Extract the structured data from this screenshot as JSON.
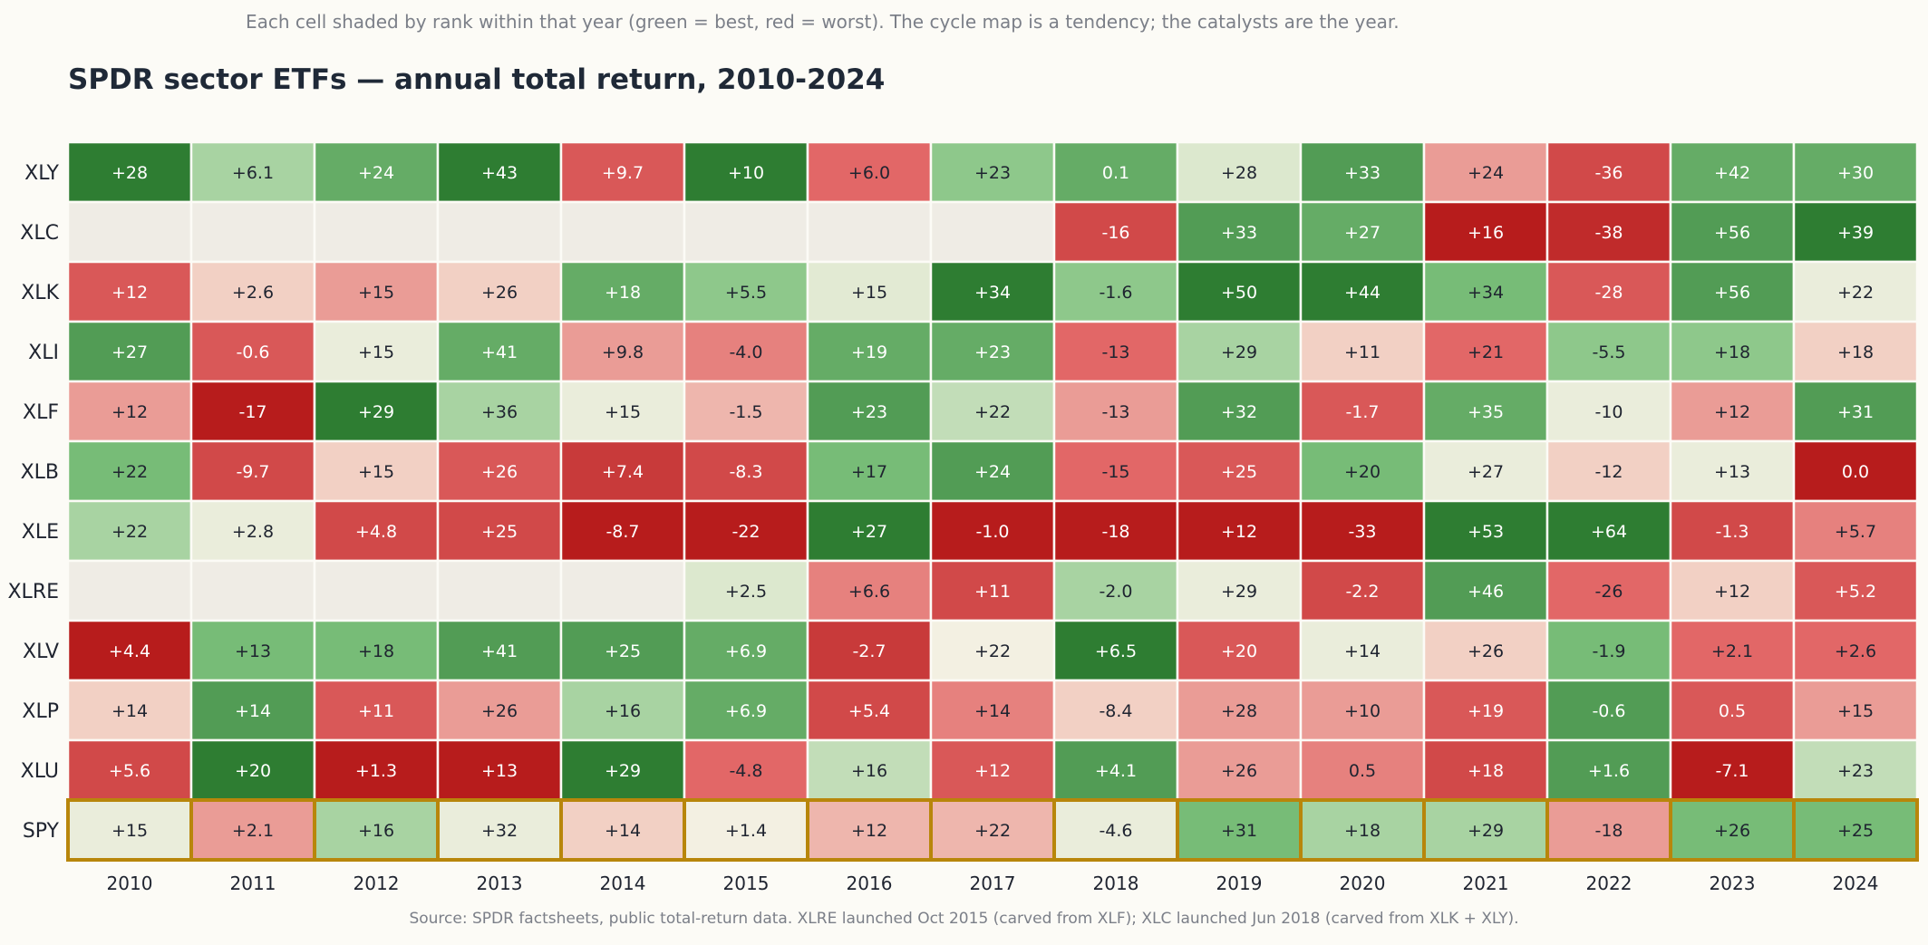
{
  "subtitle": "Each cell shaded by rank within that year (green = best, red = worst). The cycle map is a tendency; the catalysts are the year.",
  "title": "SPDR sector ETFs — annual total return, 2010-2024",
  "source": "Source: SPDR factsheets, public total-return data. XLRE launched Oct 2015 (carved from XLF); XLC launched Jun 2018 (carved from XLK + XLY).",
  "colors": {
    "best": "#2e7d32",
    "worst": "#b71c1c",
    "empty": "#efece5",
    "highlight_border": "#b8860b",
    "grid_line": "#fcfbf6"
  },
  "chart_data": {
    "type": "heatmap",
    "title": "SPDR sector ETFs — annual total return, 2010-2024",
    "x": [
      "2010",
      "2011",
      "2012",
      "2013",
      "2014",
      "2015",
      "2016",
      "2017",
      "2018",
      "2019",
      "2020",
      "2021",
      "2022",
      "2023",
      "2024"
    ],
    "y": [
      "XLY",
      "XLC",
      "XLK",
      "XLI",
      "XLF",
      "XLB",
      "XLE",
      "XLRE",
      "XLV",
      "XLP",
      "XLU",
      "SPY"
    ],
    "highlight_row": "SPY",
    "labels": [
      [
        "+28",
        "+6.1",
        "+24",
        "+43",
        "+9.7",
        "+10",
        "+6.0",
        "+23",
        "0.1",
        "+28",
        "+33",
        "+24",
        "-36",
        "+42",
        "+30"
      ],
      [
        null,
        null,
        null,
        null,
        null,
        null,
        null,
        null,
        "-16",
        "+33",
        "+27",
        "+16",
        "-38",
        "+56",
        "+39"
      ],
      [
        "+12",
        "+2.6",
        "+15",
        "+26",
        "+18",
        "+5.5",
        "+15",
        "+34",
        "-1.6",
        "+50",
        "+44",
        "+34",
        "-28",
        "+56",
        "+22"
      ],
      [
        "+27",
        "-0.6",
        "+15",
        "+41",
        "+9.8",
        "-4.0",
        "+19",
        "+23",
        "-13",
        "+29",
        "+11",
        "+21",
        "-5.5",
        "+18",
        "+18"
      ],
      [
        "+12",
        "-17",
        "+29",
        "+36",
        "+15",
        "-1.5",
        "+23",
        "+22",
        "-13",
        "+32",
        "-1.7",
        "+35",
        "-10",
        "+12",
        "+31"
      ],
      [
        "+22",
        "-9.7",
        "+15",
        "+26",
        "+7.4",
        "-8.3",
        "+17",
        "+24",
        "-15",
        "+25",
        "+20",
        "+27",
        "-12",
        "+13",
        "0.0"
      ],
      [
        "+22",
        "+2.8",
        "+4.8",
        "+25",
        "-8.7",
        "-22",
        "+27",
        "-1.0",
        "-18",
        "+12",
        "-33",
        "+53",
        "+64",
        "-1.3",
        "+5.7"
      ],
      [
        null,
        null,
        null,
        null,
        null,
        "+2.5",
        "+6.6",
        "+11",
        "-2.0",
        "+29",
        "-2.2",
        "+46",
        "-26",
        "+12",
        "+5.2"
      ],
      [
        "+4.4",
        "+13",
        "+18",
        "+41",
        "+25",
        "+6.9",
        "-2.7",
        "+22",
        "+6.5",
        "+20",
        "+14",
        "+26",
        "-1.9",
        "+2.1",
        "+2.6"
      ],
      [
        "+14",
        "+14",
        "+11",
        "+26",
        "+16",
        "+6.9",
        "+5.4",
        "+14",
        "-8.4",
        "+28",
        "+10",
        "+19",
        "-0.6",
        "0.5",
        "+15"
      ],
      [
        "+5.6",
        "+20",
        "+1.3",
        "+13",
        "+29",
        "-4.8",
        "+16",
        "+12",
        "+4.1",
        "+26",
        "0.5",
        "+18",
        "+1.6",
        "-7.1",
        "+23"
      ],
      [
        "+15",
        "+2.1",
        "+16",
        "+32",
        "+14",
        "+1.4",
        "+12",
        "+22",
        "-4.6",
        "+31",
        "+18",
        "+29",
        "-18",
        "+26",
        "+25"
      ]
    ],
    "shade": [
      [
        1.0,
        0.7,
        0.85,
        1.0,
        0.2,
        1.0,
        0.25,
        0.75,
        0.85,
        0.6,
        0.9,
        0.35,
        0.15,
        0.85,
        0.85
      ],
      [
        null,
        null,
        null,
        null,
        null,
        null,
        null,
        null,
        0.15,
        0.9,
        0.85,
        0.0,
        0.05,
        0.9,
        1.0
      ],
      [
        0.2,
        0.45,
        0.35,
        0.45,
        0.85,
        0.75,
        0.58,
        1.0,
        0.75,
        1.0,
        1.0,
        0.8,
        0.2,
        0.9,
        0.55
      ],
      [
        0.9,
        0.2,
        0.55,
        0.85,
        0.35,
        0.3,
        0.85,
        0.85,
        0.25,
        0.7,
        0.45,
        0.25,
        0.75,
        0.75,
        0.45
      ],
      [
        0.35,
        0.0,
        1.0,
        0.7,
        0.55,
        0.4,
        0.9,
        0.65,
        0.35,
        0.9,
        0.2,
        0.85,
        0.55,
        0.35,
        0.9
      ],
      [
        0.8,
        0.15,
        0.45,
        0.2,
        0.1,
        0.15,
        0.8,
        0.9,
        0.25,
        0.2,
        0.8,
        0.55,
        0.45,
        0.55,
        0.0
      ],
      [
        0.7,
        0.55,
        0.15,
        0.15,
        0.0,
        0.0,
        1.0,
        0.0,
        0.0,
        0.0,
        0.0,
        1.0,
        1.0,
        0.15,
        0.3
      ],
      [
        null,
        null,
        null,
        null,
        null,
        0.6,
        0.3,
        0.15,
        0.7,
        0.55,
        0.15,
        0.9,
        0.25,
        0.45,
        0.2
      ],
      [
        0.0,
        0.8,
        0.8,
        0.9,
        0.9,
        0.85,
        0.1,
        0.52,
        1.0,
        0.2,
        0.55,
        0.45,
        0.8,
        0.25,
        0.25
      ],
      [
        0.45,
        0.9,
        0.2,
        0.35,
        0.7,
        0.85,
        0.15,
        0.3,
        0.45,
        0.35,
        0.35,
        0.2,
        0.9,
        0.2,
        0.35
      ],
      [
        0.15,
        1.0,
        0.0,
        0.0,
        1.0,
        0.25,
        0.65,
        0.2,
        0.9,
        0.35,
        0.3,
        0.15,
        0.9,
        0.0,
        0.65
      ],
      [
        0.55,
        0.35,
        0.7,
        0.55,
        0.45,
        0.52,
        0.4,
        0.4,
        0.55,
        0.8,
        0.7,
        0.7,
        0.35,
        0.8,
        0.8
      ]
    ]
  }
}
